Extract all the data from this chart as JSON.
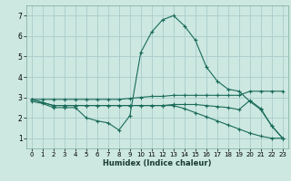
{
  "title": "",
  "xlabel": "Humidex (Indice chaleur)",
  "background_color": "#cce8e0",
  "grid_color": "#aacccc",
  "line_color": "#1a6b5a",
  "xlim": [
    -0.5,
    23.5
  ],
  "ylim": [
    0.5,
    7.5
  ],
  "xticks": [
    0,
    1,
    2,
    3,
    4,
    5,
    6,
    7,
    8,
    9,
    10,
    11,
    12,
    13,
    14,
    15,
    16,
    17,
    18,
    19,
    20,
    21,
    22,
    23
  ],
  "yticks": [
    1,
    2,
    3,
    4,
    5,
    6,
    7
  ],
  "series": [
    {
      "x": [
        0,
        1,
        2,
        3,
        4,
        5,
        6,
        7,
        8,
        9,
        10,
        11,
        12,
        13,
        14,
        15,
        16,
        17,
        18,
        19,
        20,
        21,
        22,
        23
      ],
      "y": [
        2.8,
        2.7,
        2.5,
        2.5,
        2.5,
        2.0,
        1.85,
        1.75,
        1.4,
        2.1,
        5.2,
        6.2,
        6.8,
        7.0,
        6.5,
        5.8,
        4.5,
        3.8,
        3.4,
        3.3,
        2.8,
        2.4,
        1.6,
        1.0
      ]
    },
    {
      "x": [
        0,
        1,
        2,
        3,
        4,
        5,
        6,
        7,
        8,
        9,
        10,
        11,
        12,
        13,
        14,
        15,
        16,
        17,
        18,
        19,
        20,
        21,
        22,
        23
      ],
      "y": [
        2.9,
        2.9,
        2.9,
        2.9,
        2.9,
        2.9,
        2.9,
        2.9,
        2.9,
        2.95,
        3.0,
        3.05,
        3.05,
        3.1,
        3.1,
        3.1,
        3.1,
        3.1,
        3.1,
        3.1,
        3.3,
        3.3,
        3.3,
        3.3
      ]
    },
    {
      "x": [
        0,
        1,
        2,
        3,
        4,
        5,
        6,
        7,
        8,
        9,
        10,
        11,
        12,
        13,
        14,
        15,
        16,
        17,
        18,
        19,
        20,
        21,
        22,
        23
      ],
      "y": [
        2.9,
        2.75,
        2.6,
        2.6,
        2.6,
        2.6,
        2.6,
        2.6,
        2.6,
        2.6,
        2.6,
        2.6,
        2.6,
        2.65,
        2.65,
        2.65,
        2.6,
        2.55,
        2.5,
        2.4,
        2.85,
        2.45,
        1.6,
        1.0
      ]
    },
    {
      "x": [
        0,
        1,
        2,
        3,
        4,
        5,
        6,
        7,
        8,
        9,
        10,
        11,
        12,
        13,
        14,
        15,
        16,
        17,
        18,
        19,
        20,
        21,
        22,
        23
      ],
      "y": [
        2.9,
        2.75,
        2.6,
        2.6,
        2.6,
        2.6,
        2.6,
        2.6,
        2.6,
        2.6,
        2.6,
        2.6,
        2.6,
        2.6,
        2.45,
        2.25,
        2.05,
        1.85,
        1.65,
        1.45,
        1.25,
        1.1,
        1.0,
        1.0
      ]
    }
  ]
}
